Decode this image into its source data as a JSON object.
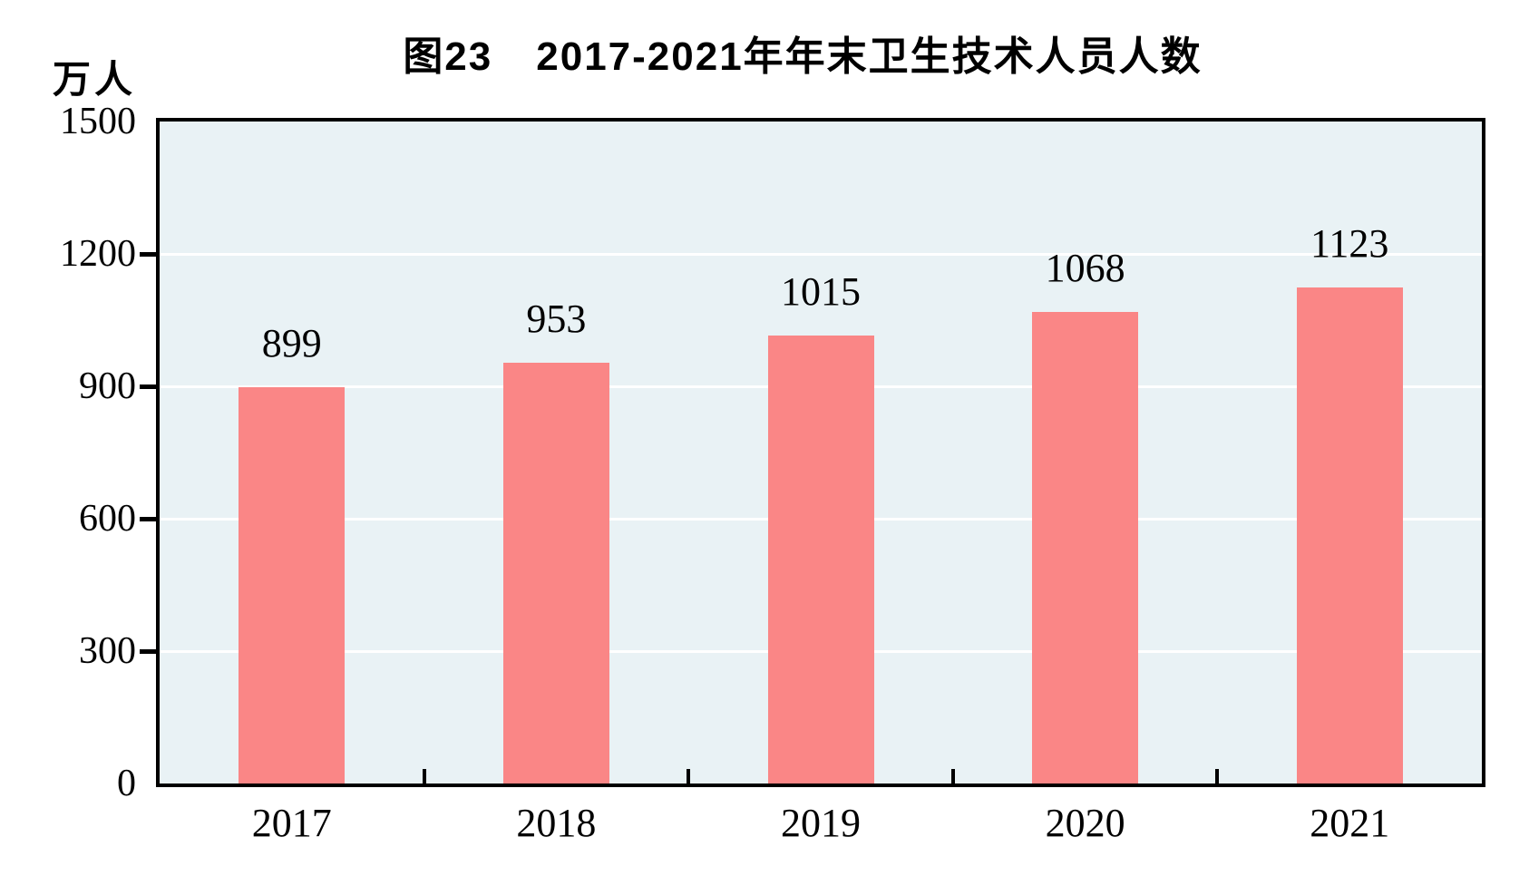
{
  "title": {
    "figure_label": "图23",
    "text": "2017-2021年年末卫生技术人员人数"
  },
  "y_unit_label": "万人",
  "colors": {
    "bar": "#FA8686",
    "plot_background": "#E9F2F5",
    "gridline": "#FFFFFF",
    "axis_border": "#000000",
    "text": "#000000"
  },
  "chart_data": {
    "type": "bar",
    "title": "图23 2017-2021年年末卫生技术人员人数",
    "categories": [
      "2017",
      "2018",
      "2019",
      "2020",
      "2021"
    ],
    "values": [
      899,
      953,
      1015,
      1068,
      1123
    ],
    "data_labels": [
      "899",
      "953",
      "1015",
      "1068",
      "1123"
    ],
    "xlabel": "",
    "ylabel": "万人",
    "ylim": [
      0,
      1500
    ],
    "yticks": [
      0,
      300,
      600,
      900,
      1200,
      1500
    ],
    "grid": "horizontal-white-at-yticks",
    "legend": "none",
    "bar_color": "#FA8686",
    "plot_border": "black",
    "background": "#E9F2F5"
  }
}
